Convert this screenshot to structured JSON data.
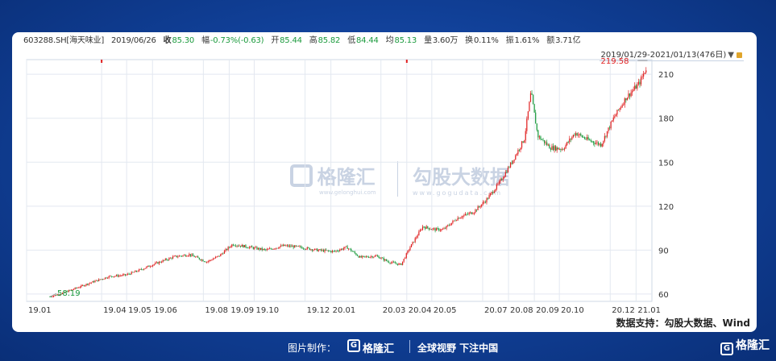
{
  "info": {
    "symbol": "603288.SH[海天味业]",
    "date": "2019/06/26",
    "close_label": "收",
    "close": "85.30",
    "change_label": "幅",
    "change": "-0.73%(-0.63)",
    "open_label": "开",
    "open": "85.44",
    "high_label": "高",
    "high": "85.82",
    "low_label": "低",
    "low": "84.44",
    "avg_label": "均",
    "avg": "85.13",
    "vol_label": "量",
    "vol": "3.60万",
    "turnover_label": "换",
    "turnover": "0.11%",
    "amp_label": "振",
    "amp": "1.61%",
    "amount_label": "额",
    "amount": "3.71亿"
  },
  "range_label": "2019/01/29-2021/01/13(476日)",
  "range_arrow": "▼",
  "source_text": "数据支持：勾股大数据、Wind",
  "watermark": {
    "brand": "格隆汇",
    "brand_url": "www.gelonghui.com",
    "data": "勾股大数据",
    "data_url": "www.gogudata.com"
  },
  "footer": {
    "made_by": "图片制作：",
    "brand": "格隆汇",
    "slogan": "全球视野 下注中国"
  },
  "corner_brand": "格隆汇",
  "colors": {
    "up": "#e02020",
    "down": "#1a9a3c",
    "grid": "#e3e8f0"
  },
  "chart_data": {
    "type": "candlestick",
    "y_ticks": [
      60,
      90,
      120,
      150,
      180,
      210
    ],
    "ylim": [
      55,
      220
    ],
    "x_ticks": [
      "19.01",
      "19.04",
      "19.05",
      "19.06",
      "19.08",
      "19.09",
      "19.10",
      "19.12",
      "20.01",
      "20.03",
      "20.04",
      "20.05",
      "20.07",
      "20.08",
      "20.09",
      "20.10",
      "20.12",
      "21.01"
    ],
    "min_label": "58.19",
    "max_label": "219.58",
    "close_path": [
      [
        "2019-01-29",
        58.2
      ],
      [
        "2019-02-15",
        61
      ],
      [
        "2019-03-01",
        64
      ],
      [
        "2019-03-20",
        68
      ],
      [
        "2019-04-10",
        72
      ],
      [
        "2019-04-30",
        73
      ],
      [
        "2019-05-15",
        76
      ],
      [
        "2019-06-01",
        80
      ],
      [
        "2019-06-26",
        85.3
      ],
      [
        "2019-07-15",
        87
      ],
      [
        "2019-08-05",
        82
      ],
      [
        "2019-08-20",
        86
      ],
      [
        "2019-09-05",
        94
      ],
      [
        "2019-09-25",
        92
      ],
      [
        "2019-10-15",
        90
      ],
      [
        "2019-11-05",
        93
      ],
      [
        "2019-11-25",
        92
      ],
      [
        "2019-12-15",
        90
      ],
      [
        "2020-01-05",
        89
      ],
      [
        "2020-01-20",
        92
      ],
      [
        "2020-02-05",
        85
      ],
      [
        "2020-02-25",
        86
      ],
      [
        "2020-03-10",
        82
      ],
      [
        "2020-03-25",
        80
      ],
      [
        "2020-04-05",
        92
      ],
      [
        "2020-04-20",
        106
      ],
      [
        "2020-05-05",
        104
      ],
      [
        "2020-05-15",
        104
      ],
      [
        "2020-06-01",
        112
      ],
      [
        "2020-06-20",
        116
      ],
      [
        "2020-07-05",
        124
      ],
      [
        "2020-07-20",
        135
      ],
      [
        "2020-08-05",
        150
      ],
      [
        "2020-08-20",
        166
      ],
      [
        "2020-08-28",
        198
      ],
      [
        "2020-09-05",
        168
      ],
      [
        "2020-09-20",
        160
      ],
      [
        "2020-10-05",
        159
      ],
      [
        "2020-10-20",
        170
      ],
      [
        "2020-11-05",
        165
      ],
      [
        "2020-11-20",
        162
      ],
      [
        "2020-12-05",
        180
      ],
      [
        "2020-12-20",
        194
      ],
      [
        "2021-01-05",
        204
      ],
      [
        "2021-01-13",
        214
      ]
    ]
  }
}
